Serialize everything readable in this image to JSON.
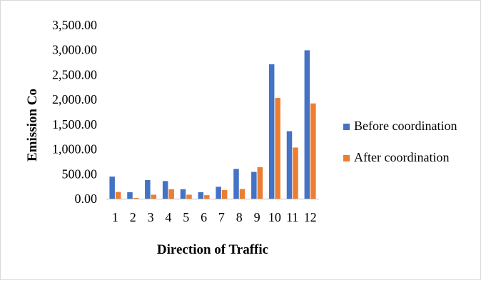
{
  "chart_data": {
    "type": "bar",
    "title": "",
    "xlabel": "Direction of Traffic",
    "ylabel": "Emission Co",
    "categories": [
      "1",
      "2",
      "3",
      "4",
      "5",
      "6",
      "7",
      "8",
      "9",
      "10",
      "11",
      "12"
    ],
    "ylim": [
      0,
      3500
    ],
    "yticks": [
      "0.00",
      "500.00",
      "1,000.00",
      "1,500.00",
      "2,000.00",
      "2,500.00",
      "3,000.00",
      "3,500.00"
    ],
    "grid": false,
    "legend_position": "right",
    "series": [
      {
        "name": "Before coordination",
        "color": "#4472C4",
        "values": [
          445,
          130,
          375,
          355,
          190,
          130,
          240,
          600,
          540,
          2710,
          1360,
          2990
        ]
      },
      {
        "name": "After coordination",
        "color": "#ED7D31",
        "values": [
          135,
          15,
          80,
          190,
          80,
          70,
          175,
          195,
          635,
          2030,
          1030,
          1920
        ]
      }
    ]
  }
}
